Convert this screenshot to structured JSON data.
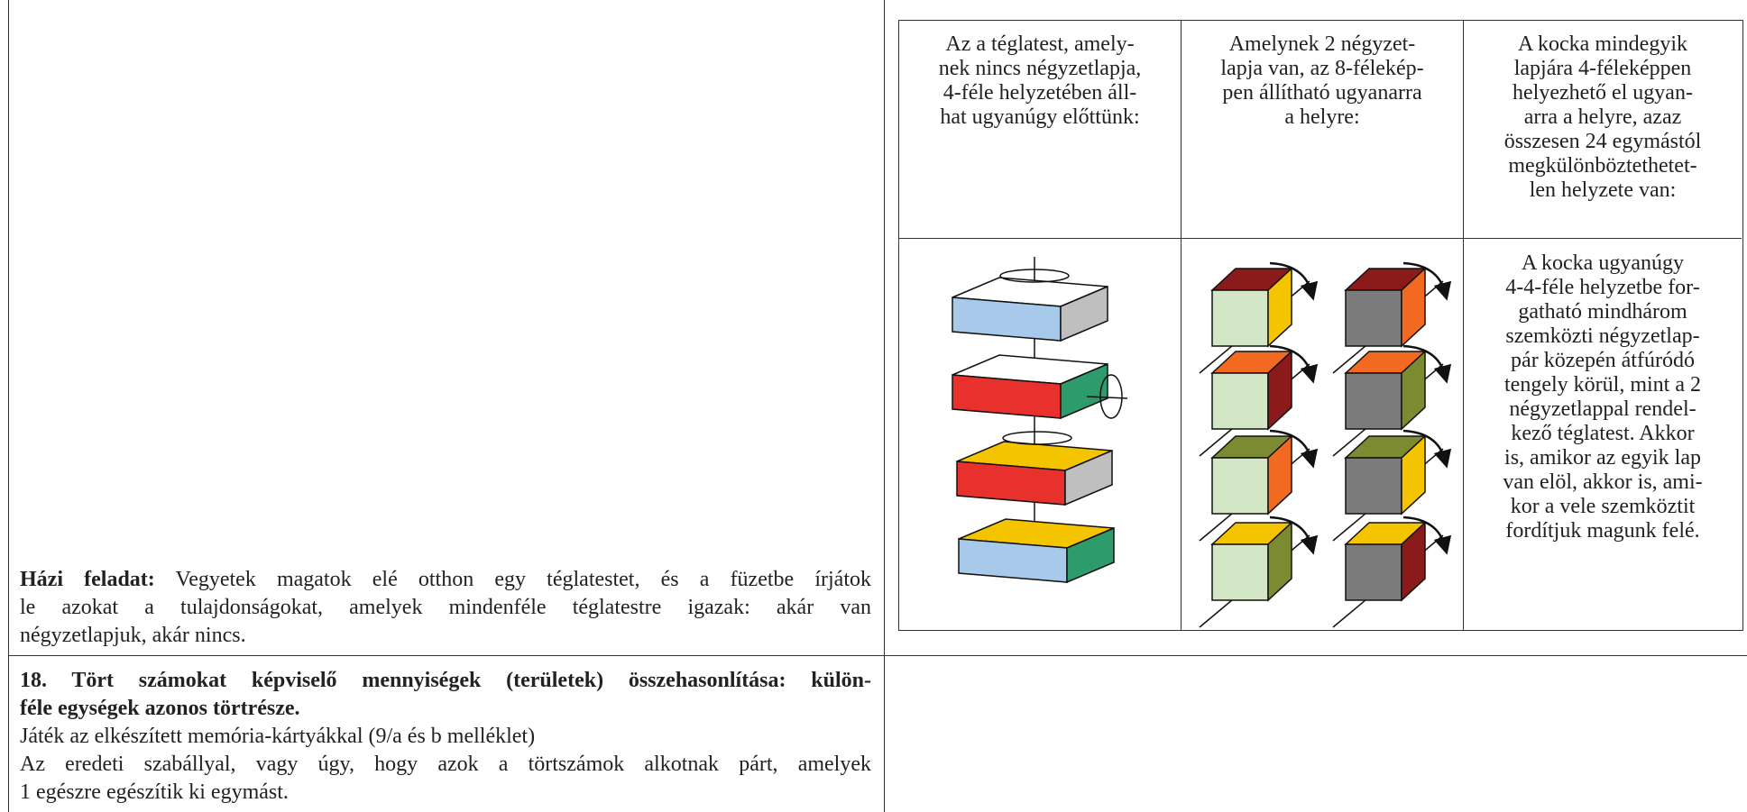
{
  "homework": {
    "label": "Házi feladat:",
    "lines": [
      "Vegyetek magatok elé otthon egy téglatestet, és a füzetbe írjátok",
      "le azokat a tulajdonságokat, amelyek mindenféle téglatestre igazak: akár van",
      "négyzetlapjuk, akár nincs."
    ]
  },
  "section": {
    "title_lines": [
      "18. Tört számokat képviselő mennyiségek (területek) összehasonlítása: külön-",
      "féle egységek azonos törtrésze."
    ],
    "lines": [
      "Játék az elkészített memória-kártyákkal (9/a és b melléklet)",
      "Az eredeti szabállyal, vagy úgy, hogy azok a törtszámok alkotnak párt, amelyek",
      "1 egészre egészítik ki egymást."
    ]
  },
  "table": {
    "header_cells": [
      [
        "Az a téglatest, amely-",
        "nek nincs négyzetlapja,",
        "4-féle helyzetében áll-",
        "hat ugyanúgy előttünk:"
      ],
      [
        "Amelynek 2 négyzet-",
        "lapja van, az 8-félekép-",
        "pen állítható ugyanarra",
        "a helyre:"
      ],
      [
        "A kocka mindegyik",
        "lapjára 4-féleképpen",
        "helyezhető el ugyan-",
        "arra a helyre, azaz",
        "összesen 24 egymástól",
        "megkülönböztethetet-",
        "len helyzete van:"
      ]
    ],
    "cube_text": [
      "A kocka ugyanúgy",
      "4-4-féle helyzetbe for-",
      "gatható mindhárom",
      "szemközti négyzetlap-",
      "pár közepén átfúródó",
      "tengely körül, mint a 2",
      "négyzetlappal rendel-",
      "kező téglatest. Akkor",
      "is, amikor az egyik lap",
      "van elöl, akkor is, ami-",
      "kor a vele szemköztit",
      "fordítjuk magunk felé."
    ]
  }
}
